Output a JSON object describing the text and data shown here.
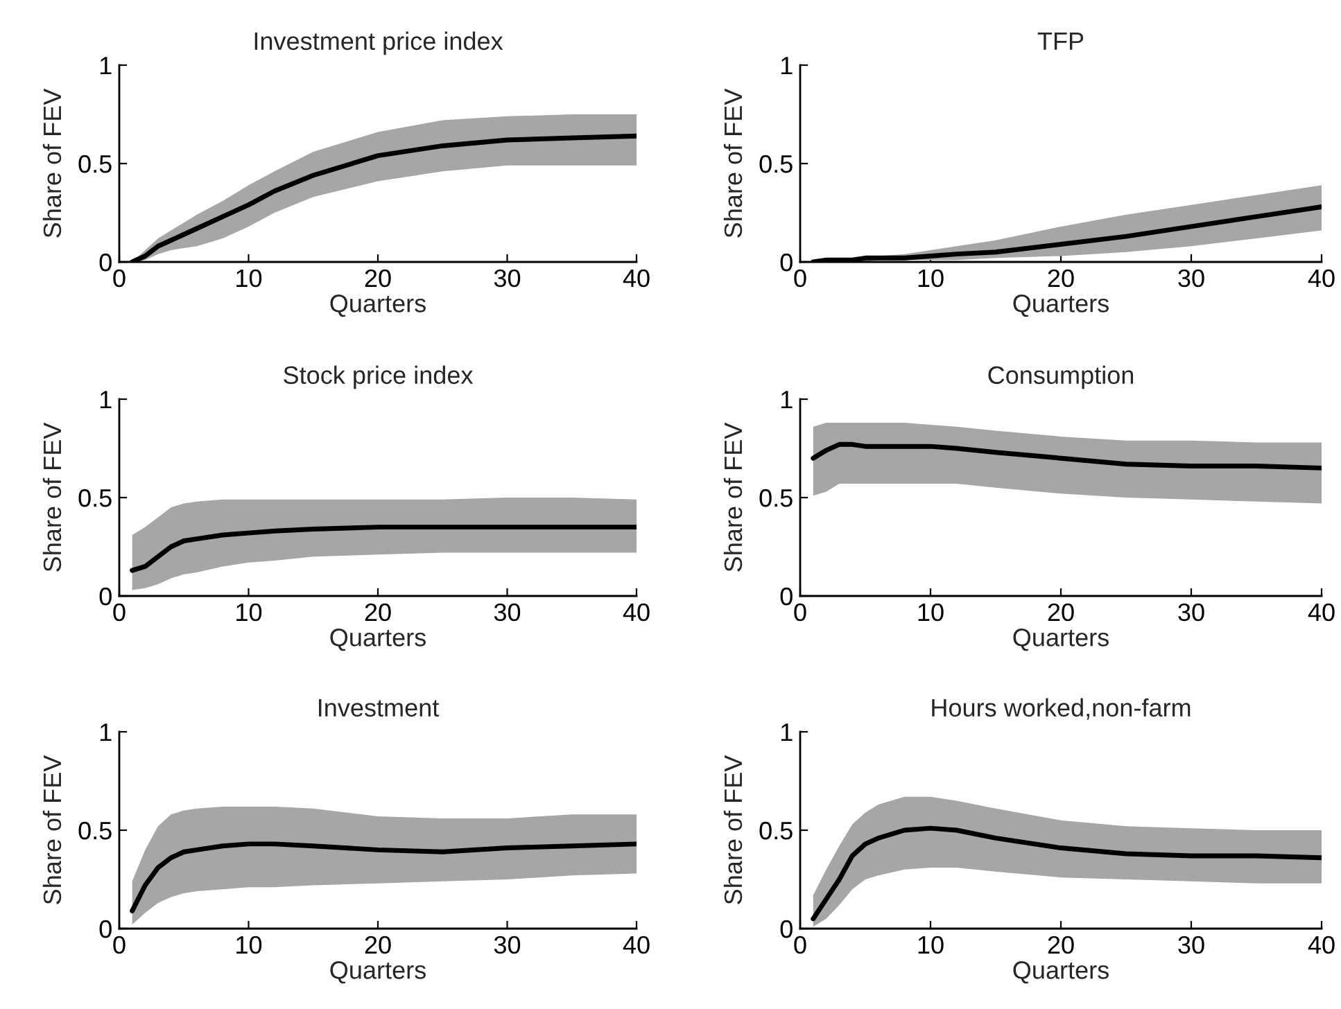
{
  "chart_data": [
    {
      "type": "line",
      "title": "Investment price index",
      "xlabel": "Quarters",
      "ylabel": "Share of FEV",
      "xlim": [
        0,
        40
      ],
      "ylim": [
        0,
        1
      ],
      "xticks": [
        0,
        10,
        20,
        30,
        40
      ],
      "yticks": [
        0,
        0.5,
        1
      ],
      "grid": false,
      "x": [
        1,
        2,
        3,
        4,
        5,
        6,
        8,
        10,
        12,
        15,
        20,
        25,
        30,
        35,
        40
      ],
      "series": [
        {
          "color": "#000000",
          "values": [
            0,
            0.03,
            0.08,
            0.11,
            0.14,
            0.17,
            0.23,
            0.29,
            0.36,
            0.44,
            0.54,
            0.59,
            0.62,
            0.63,
            0.64
          ],
          "lower": [
            0,
            0.01,
            0.04,
            0.06,
            0.07,
            0.08,
            0.12,
            0.18,
            0.25,
            0.33,
            0.41,
            0.46,
            0.49,
            0.49,
            0.49
          ],
          "upper": [
            0,
            0.06,
            0.12,
            0.16,
            0.2,
            0.24,
            0.31,
            0.39,
            0.46,
            0.56,
            0.66,
            0.72,
            0.74,
            0.75,
            0.75
          ]
        }
      ]
    },
    {
      "type": "line",
      "title": "TFP",
      "xlabel": "Quarters",
      "ylabel": "Share of FEV",
      "xlim": [
        0,
        40
      ],
      "ylim": [
        0,
        1
      ],
      "xticks": [
        0,
        10,
        20,
        30,
        40
      ],
      "yticks": [
        0,
        0.5,
        1
      ],
      "grid": false,
      "x": [
        1,
        2,
        3,
        4,
        5,
        6,
        8,
        10,
        12,
        15,
        20,
        25,
        30,
        35,
        40
      ],
      "series": [
        {
          "color": "#000000",
          "values": [
            0,
            0.01,
            0.01,
            0.01,
            0.02,
            0.02,
            0.02,
            0.03,
            0.04,
            0.05,
            0.09,
            0.13,
            0.18,
            0.23,
            0.28
          ],
          "lower": [
            0,
            0,
            0,
            0,
            0,
            0.01,
            0.01,
            0.01,
            0.01,
            0.02,
            0.03,
            0.05,
            0.08,
            0.12,
            0.16
          ],
          "upper": [
            0.01,
            0.01,
            0.02,
            0.02,
            0.03,
            0.03,
            0.04,
            0.06,
            0.08,
            0.11,
            0.18,
            0.24,
            0.29,
            0.34,
            0.39
          ]
        }
      ]
    },
    {
      "type": "line",
      "title": "Stock price index",
      "xlabel": "Quarters",
      "ylabel": "Share of FEV",
      "xlim": [
        0,
        40
      ],
      "ylim": [
        0,
        1
      ],
      "xticks": [
        0,
        10,
        20,
        30,
        40
      ],
      "yticks": [
        0,
        0.5,
        1
      ],
      "grid": false,
      "x": [
        1,
        2,
        3,
        4,
        5,
        6,
        8,
        10,
        12,
        15,
        20,
        25,
        30,
        35,
        40
      ],
      "series": [
        {
          "color": "#000000",
          "values": [
            0.13,
            0.15,
            0.2,
            0.25,
            0.28,
            0.29,
            0.31,
            0.32,
            0.33,
            0.34,
            0.35,
            0.35,
            0.35,
            0.35,
            0.35
          ],
          "lower": [
            0.03,
            0.04,
            0.06,
            0.09,
            0.11,
            0.12,
            0.15,
            0.17,
            0.18,
            0.2,
            0.21,
            0.22,
            0.22,
            0.22,
            0.22
          ],
          "upper": [
            0.31,
            0.35,
            0.4,
            0.45,
            0.47,
            0.48,
            0.49,
            0.49,
            0.49,
            0.49,
            0.49,
            0.49,
            0.5,
            0.5,
            0.49
          ]
        }
      ]
    },
    {
      "type": "line",
      "title": "Consumption",
      "xlabel": "Quarters",
      "ylabel": "Share of FEV",
      "xlim": [
        0,
        40
      ],
      "ylim": [
        0,
        1
      ],
      "xticks": [
        0,
        10,
        20,
        30,
        40
      ],
      "yticks": [
        0,
        0.5,
        1
      ],
      "grid": false,
      "x": [
        1,
        2,
        3,
        4,
        5,
        6,
        8,
        10,
        12,
        15,
        20,
        25,
        30,
        35,
        40
      ],
      "series": [
        {
          "color": "#000000",
          "values": [
            0.7,
            0.74,
            0.77,
            0.77,
            0.76,
            0.76,
            0.76,
            0.76,
            0.75,
            0.73,
            0.7,
            0.67,
            0.66,
            0.66,
            0.65
          ],
          "lower": [
            0.51,
            0.53,
            0.57,
            0.57,
            0.57,
            0.57,
            0.57,
            0.57,
            0.57,
            0.55,
            0.52,
            0.5,
            0.49,
            0.48,
            0.47
          ],
          "upper": [
            0.86,
            0.88,
            0.88,
            0.88,
            0.88,
            0.88,
            0.88,
            0.87,
            0.86,
            0.84,
            0.81,
            0.79,
            0.79,
            0.78,
            0.78
          ]
        }
      ]
    },
    {
      "type": "line",
      "title": "Investment",
      "xlabel": "Quarters",
      "ylabel": "Share of FEV",
      "xlim": [
        0,
        40
      ],
      "ylim": [
        0,
        1
      ],
      "xticks": [
        0,
        10,
        20,
        30,
        40
      ],
      "yticks": [
        0,
        0.5,
        1
      ],
      "grid": false,
      "x": [
        1,
        2,
        3,
        4,
        5,
        6,
        8,
        10,
        12,
        15,
        20,
        25,
        30,
        35,
        40
      ],
      "series": [
        {
          "color": "#000000",
          "values": [
            0.09,
            0.22,
            0.31,
            0.36,
            0.39,
            0.4,
            0.42,
            0.43,
            0.43,
            0.42,
            0.4,
            0.39,
            0.41,
            0.42,
            0.43
          ],
          "lower": [
            0.02,
            0.08,
            0.13,
            0.16,
            0.18,
            0.19,
            0.2,
            0.21,
            0.21,
            0.22,
            0.23,
            0.24,
            0.25,
            0.27,
            0.28
          ],
          "upper": [
            0.24,
            0.4,
            0.52,
            0.58,
            0.6,
            0.61,
            0.62,
            0.62,
            0.62,
            0.61,
            0.57,
            0.56,
            0.56,
            0.58,
            0.58
          ]
        }
      ]
    },
    {
      "type": "line",
      "title": "Hours worked,non-farm",
      "xlabel": "Quarters",
      "ylabel": "Share of FEV",
      "xlim": [
        0,
        40
      ],
      "ylim": [
        0,
        1
      ],
      "xticks": [
        0,
        10,
        20,
        30,
        40
      ],
      "yticks": [
        0,
        0.5,
        1
      ],
      "grid": false,
      "x": [
        1,
        2,
        3,
        4,
        5,
        6,
        8,
        10,
        12,
        15,
        20,
        25,
        30,
        35,
        40
      ],
      "series": [
        {
          "color": "#000000",
          "values": [
            0.05,
            0.15,
            0.25,
            0.37,
            0.43,
            0.46,
            0.5,
            0.51,
            0.5,
            0.46,
            0.41,
            0.38,
            0.37,
            0.37,
            0.36
          ],
          "lower": [
            0.01,
            0.05,
            0.12,
            0.2,
            0.25,
            0.27,
            0.3,
            0.31,
            0.31,
            0.29,
            0.26,
            0.25,
            0.24,
            0.23,
            0.23
          ],
          "upper": [
            0.17,
            0.3,
            0.42,
            0.53,
            0.59,
            0.63,
            0.67,
            0.67,
            0.65,
            0.61,
            0.55,
            0.52,
            0.51,
            0.5,
            0.5
          ]
        }
      ]
    }
  ]
}
